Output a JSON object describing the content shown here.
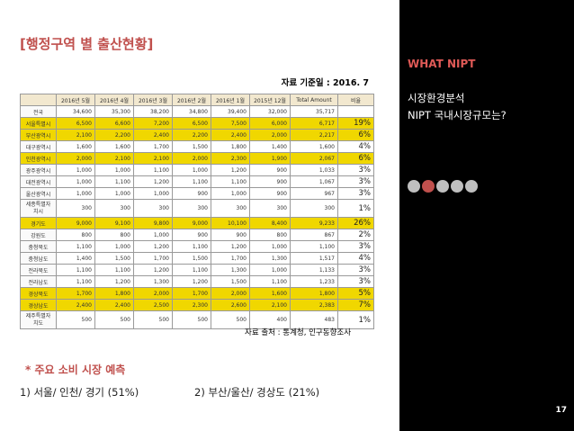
{
  "title": "[행정구역 별 출산현황]",
  "date_note": "자료 기준일 : 2016. 7",
  "table": {
    "headers": [
      "",
      "2016년 5월",
      "2016년 4월",
      "2016년 3월",
      "2016년 2월",
      "2016년 1월",
      "2015년 12월",
      "Total Amount",
      "비율"
    ],
    "rows": [
      {
        "region": "전국",
        "values": [
          "34,600",
          "35,300",
          "38,200",
          "34,800",
          "39,400",
          "32,000",
          "35,717"
        ],
        "ratio": "",
        "highlight": false
      },
      {
        "region": "서울특별시",
        "values": [
          "6,500",
          "6,600",
          "7,200",
          "6,500",
          "7,500",
          "6,000",
          "6,717"
        ],
        "ratio": "19%",
        "highlight": true
      },
      {
        "region": "부산광역시",
        "values": [
          "2,100",
          "2,200",
          "2,400",
          "2,200",
          "2,400",
          "2,000",
          "2,217"
        ],
        "ratio": "6%",
        "highlight": true
      },
      {
        "region": "대구광역시",
        "values": [
          "1,600",
          "1,600",
          "1,700",
          "1,500",
          "1,800",
          "1,400",
          "1,600"
        ],
        "ratio": "4%",
        "highlight": false
      },
      {
        "region": "인천광역시",
        "values": [
          "2,000",
          "2,100",
          "2,100",
          "2,000",
          "2,300",
          "1,900",
          "2,067"
        ],
        "ratio": "6%",
        "highlight": true
      },
      {
        "region": "광주광역시",
        "values": [
          "1,000",
          "1,000",
          "1,100",
          "1,000",
          "1,200",
          "900",
          "1,033"
        ],
        "ratio": "3%",
        "highlight": false
      },
      {
        "region": "대전광역시",
        "values": [
          "1,000",
          "1,100",
          "1,200",
          "1,100",
          "1,100",
          "900",
          "1,067"
        ],
        "ratio": "3%",
        "highlight": false
      },
      {
        "region": "울산광역시",
        "values": [
          "1,000",
          "1,000",
          "1,000",
          "900",
          "1,000",
          "900",
          "967"
        ],
        "ratio": "3%",
        "highlight": false
      },
      {
        "region": "세종특별자치시",
        "values": [
          "300",
          "300",
          "300",
          "300",
          "300",
          "300",
          "300"
        ],
        "ratio": "1%",
        "highlight": false,
        "tall": true
      },
      {
        "region": "경기도",
        "values": [
          "9,000",
          "9,100",
          "9,800",
          "9,000",
          "10,100",
          "8,400",
          "9,233"
        ],
        "ratio": "26%",
        "highlight": true
      },
      {
        "region": "강원도",
        "values": [
          "800",
          "800",
          "1,000",
          "900",
          "900",
          "800",
          "867"
        ],
        "ratio": "2%",
        "highlight": false
      },
      {
        "region": "충청북도",
        "values": [
          "1,100",
          "1,000",
          "1,200",
          "1,100",
          "1,200",
          "1,000",
          "1,100"
        ],
        "ratio": "3%",
        "highlight": false
      },
      {
        "region": "충청남도",
        "values": [
          "1,400",
          "1,500",
          "1,700",
          "1,500",
          "1,700",
          "1,300",
          "1,517"
        ],
        "ratio": "4%",
        "highlight": false
      },
      {
        "region": "전라북도",
        "values": [
          "1,100",
          "1,100",
          "1,200",
          "1,100",
          "1,300",
          "1,000",
          "1,133"
        ],
        "ratio": "3%",
        "highlight": false
      },
      {
        "region": "전라남도",
        "values": [
          "1,100",
          "1,200",
          "1,300",
          "1,200",
          "1,500",
          "1,100",
          "1,233"
        ],
        "ratio": "3%",
        "highlight": false
      },
      {
        "region": "경상북도",
        "values": [
          "1,700",
          "1,800",
          "2,000",
          "1,700",
          "2,000",
          "1,600",
          "1,800"
        ],
        "ratio": "5%",
        "highlight": true
      },
      {
        "region": "경상남도",
        "values": [
          "2,400",
          "2,400",
          "2,500",
          "2,300",
          "2,600",
          "2,100",
          "2,383"
        ],
        "ratio": "7%",
        "highlight": true
      },
      {
        "region": "제주특별자치도",
        "values": [
          "500",
          "500",
          "500",
          "500",
          "500",
          "400",
          "483"
        ],
        "ratio": "1%",
        "highlight": false,
        "tall": true
      }
    ]
  },
  "source_note": "자료 출처 : 통계청, 인구동향조사",
  "section_title": "* 주요 소비 시장 예측",
  "prediction_1": "1) 서울/ 인천/ 경기 (51%)",
  "prediction_2": "2) 부산/울산/ 경상도 (21%)",
  "sidebar": {
    "heading": "WHAT NIPT",
    "line1": "시장환경분석",
    "line2": "NIPT 국내시장규모는?",
    "dots_total": 5,
    "dots_active_index": 1,
    "page_number": "17"
  },
  "colors": {
    "accent": "#c0504d",
    "highlight": "#f0d700",
    "header_bg": "#f2e8cf",
    "sidebar_bg": "#000000"
  }
}
